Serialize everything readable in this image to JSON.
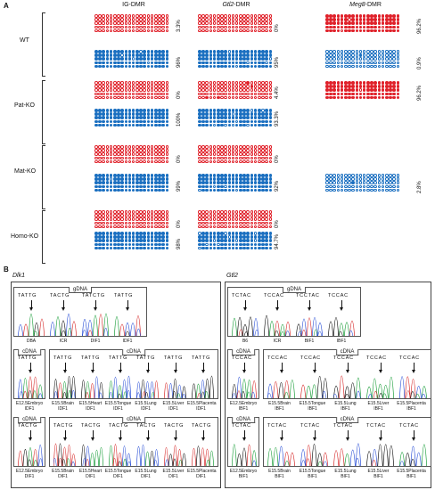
{
  "panelA": {
    "letter": "A",
    "columns": [
      {
        "title_prefix": "IG-DMR",
        "title_italic": "",
        "title_suffix": ""
      },
      {
        "title_prefix": "",
        "title_italic": "Gtl2",
        "title_suffix": "-DMR"
      },
      {
        "title_prefix": "",
        "title_italic": "Meg8",
        "title_suffix": "-DMR"
      }
    ],
    "groups": [
      "WT",
      "Pat-KO",
      "Mat-KO",
      "Homo-KO"
    ],
    "pcts": {
      "ig": [
        "3.3%",
        "96%",
        "0%",
        "100%",
        "0%",
        "99%",
        "0%",
        "98%"
      ],
      "gtl2": [
        "0%",
        "95%",
        "4.4%",
        "93.3%",
        "0%",
        "92%",
        "0%",
        "94.7%"
      ],
      "meg8": [
        "96.2%",
        "0.9%",
        "96.2%",
        "2.8%"
      ]
    }
  },
  "panelB": {
    "letter": "B",
    "left": {
      "gene": "Dlk1",
      "gdna_label": "gDNA",
      "gdna_samples": [
        "DBA",
        "ICR",
        "DIF1",
        "IDF1"
      ],
      "gdna_seqs": [
        "TATTG",
        "TACTG",
        "TATCTG",
        "TATTG"
      ],
      "cdna1_label": "cDNA",
      "cdna1_head_sample": "E12.5Embryo\nIDF1",
      "cdna1_samples": [
        "E15.5Brain\nIDF1",
        "E15.5Heart\nIDF1",
        "E15.5Tongue\nIDF1",
        "E15.5Lung\nIDF1",
        "E15.5Liver\nIDF1",
        "E15.5Placenta\nIDF1"
      ],
      "cdna1_seq": "TATTG",
      "cdna2_label": "cDNA",
      "cdna2_head_sample": "E12.5Embryo\nDIF1",
      "cdna2_samples": [
        "E15.5Brain\nDIF1",
        "E15.5Heart\nDIF1",
        "E15.5Tongue\nDIF1",
        "E15.5Lung\nDIF1",
        "E15.5Liver\nDIF1",
        "E15.5Placenta\nDIF1"
      ],
      "cdna2_seq": "TACTG"
    },
    "right": {
      "gene": "Gtl2",
      "gdna_label": "gDNA",
      "gdna_samples": [
        "B6",
        "ICR",
        "BIF1",
        "IBF1"
      ],
      "gdna_seqs": [
        "TCTAC",
        "TCCAC",
        "TCCTAC",
        "TCCAC"
      ],
      "cdna1_label": "cDNA",
      "cdna1_head_sample": "E12.5Embryo\nIBF1",
      "cdna1_samples": [
        "E15.5Brain\nIBF1",
        "E15.5Tongue\nIBF1",
        "E15.5Lung\nIBF1",
        "E15.5Liver\nIBF1",
        "E15.5Placenta\nIBF1"
      ],
      "cdna1_seq": "TCCAC",
      "cdna2_label": "cDNA",
      "cdna2_head_sample": "E12.5Embryo\nBIF1",
      "cdna2_samples": [
        "E15.5Brain\nBIF1",
        "E15.5Tongue\nBIF1",
        "E15.5Lung\nBIF1",
        "E15.5Liver\nBIF1",
        "E15.5Placenta\nBIF1"
      ],
      "cdna2_seq": "TCTAC"
    }
  },
  "colors": {
    "blue": "#1a6fc0",
    "red": "#e0212a",
    "trace_green": "#1b9e3a",
    "trace_blue": "#2a4fd6",
    "trace_red": "#d62a2a",
    "trace_black": "#111111"
  }
}
